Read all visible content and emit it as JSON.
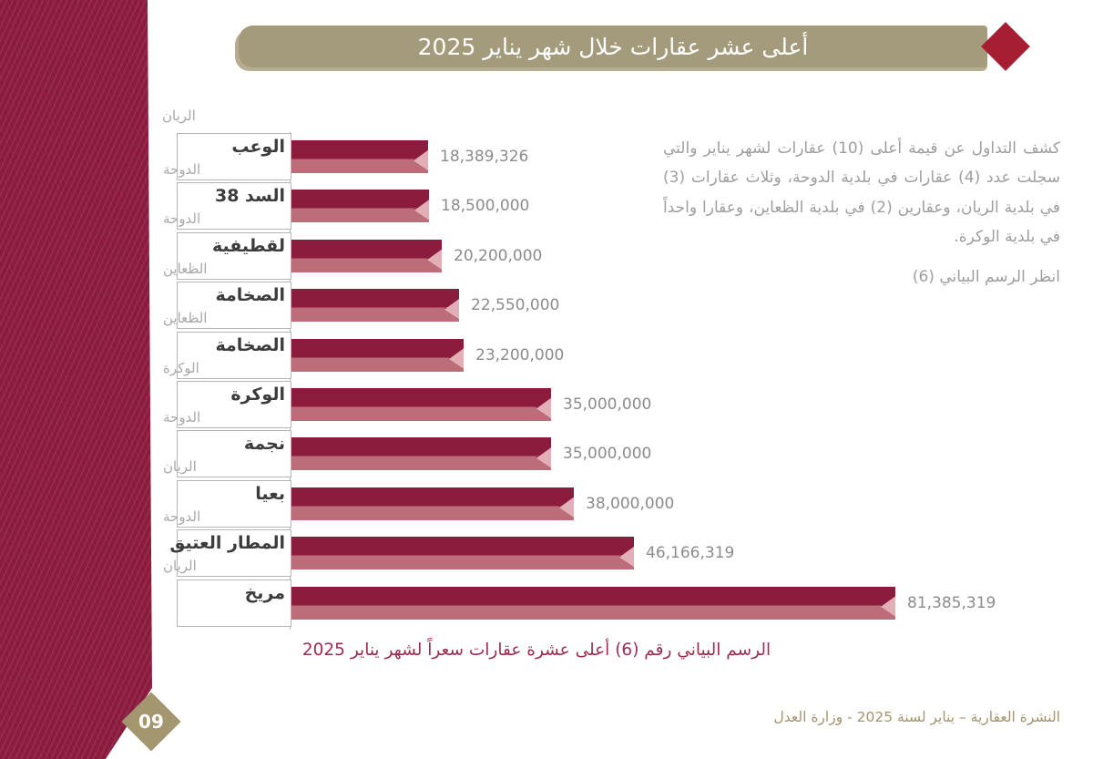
{
  "banner": {
    "title": "أعلى عشر عقارات خلال شهر يناير 2025",
    "bg_color": "#a49a7c",
    "diamond_color": "#a61e32"
  },
  "side_band_color": "#8d1c40",
  "intro": {
    "body": "كشف التداول عن قيمة أعلى (10) عقارات لشهر يناير والتي سجلت عدد (4) عقارات في بلدية الدوحة، وثلاث عقارات (3) في بلدية الريان، وعقارين (2) في بلدية الظعاين، وعقارا واحداً في بلدية الوكرة.",
    "see_note": "انظر الرسم البياني (6)"
  },
  "chart_data": {
    "type": "bar",
    "orientation": "horizontal",
    "title": "أعلى عشر عقارات خلال شهر يناير 2025",
    "caption": "الرسم البياني رقم (6) أعلى عشرة عقارات سعراً لشهر يناير 2025",
    "orphan_top_label": "الريان",
    "max_value": 81385319,
    "bar_color_dark": "#8c1c3e",
    "bar_color_light": "#bd6d79",
    "bar_tip_color": "#e3afb6",
    "bars": [
      {
        "name": "الوعب",
        "municipality": "الدوحة",
        "value": 18389326,
        "label": "18,389,326"
      },
      {
        "name": "السد 38",
        "municipality": "الدوحة",
        "value": 18500000,
        "label": "18,500,000"
      },
      {
        "name": "لقطيفية",
        "municipality": "الظعاين",
        "value": 20200000,
        "label": "20,200,000"
      },
      {
        "name": "الصخامة",
        "municipality": "الظعاين",
        "value": 22550000,
        "label": "22,550,000"
      },
      {
        "name": "الصخامة",
        "municipality": "الوكرة",
        "value": 23200000,
        "label": "23,200,000"
      },
      {
        "name": "الوكرة",
        "municipality": "الدوحة",
        "value": 35000000,
        "label": "35,000,000"
      },
      {
        "name": "نجمة",
        "municipality": "الريان",
        "value": 35000000,
        "label": "35,000,000"
      },
      {
        "name": "بعيا",
        "municipality": "الدوحة",
        "value": 38000000,
        "label": "38,000,000"
      },
      {
        "name": "المطار العتيق",
        "municipality": "الريان",
        "value": 46166319,
        "label": "46,166,319"
      },
      {
        "name": "مريخ",
        "municipality": "",
        "value": 81385319,
        "label": "81,385,319"
      }
    ]
  },
  "footer": {
    "page_number": "09",
    "text": "النشرة العقارية – يناير لسنة 2025 - وزارة العدل"
  }
}
